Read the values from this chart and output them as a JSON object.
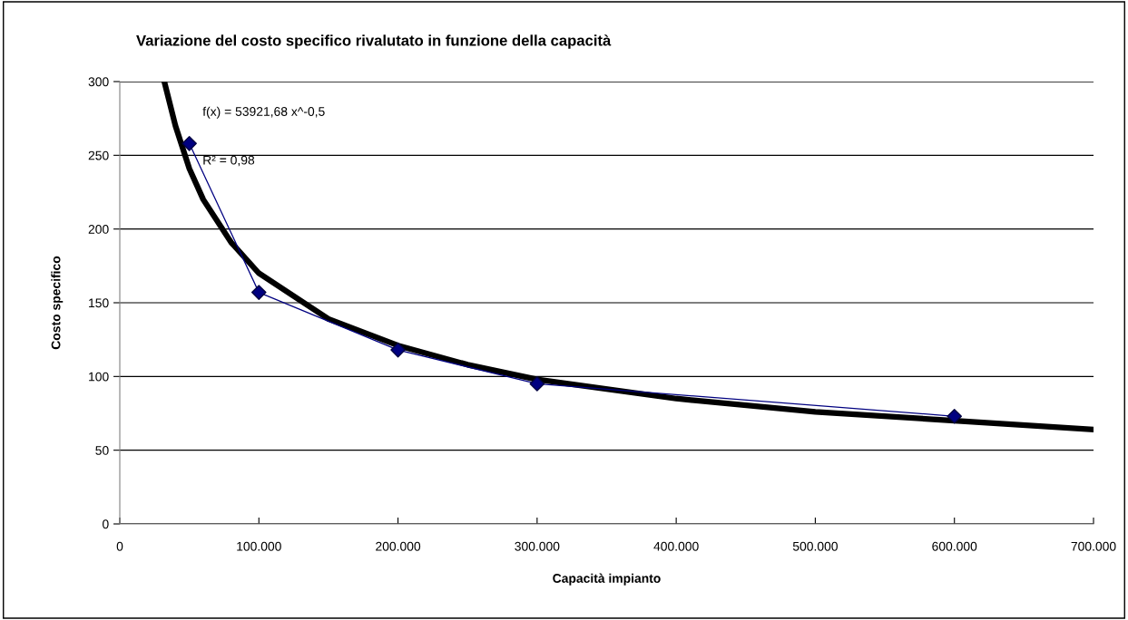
{
  "chart_data": {
    "type": "line",
    "title": "Variazione del costo specifico rivalutato in funzione della capacità",
    "xlabel": "Capacità impianto",
    "ylabel": "Costo specifico",
    "annotations": [
      "f(x) = 53921,68 x^-0,5",
      "R² = 0,98"
    ],
    "series": [
      {
        "color": "#000080",
        "marker": "diamond",
        "x": [
          50000,
          100000,
          200000,
          300000,
          600000
        ],
        "values": [
          258,
          157,
          118,
          95,
          73
        ]
      },
      {
        "color": "#000000",
        "marker": "none",
        "x": [
          32000,
          40000,
          50000,
          60000,
          80000,
          100000,
          150000,
          200000,
          250000,
          300000,
          400000,
          500000,
          600000,
          700000
        ],
        "values": [
          300,
          270,
          241,
          220,
          191,
          170,
          139,
          121,
          108,
          98,
          85,
          76,
          70,
          64
        ]
      }
    ],
    "xlim": [
      0,
      700000
    ],
    "ylim": [
      0,
      300
    ],
    "xticks": [
      0,
      {
        "value": 100000,
        "label": "100.000"
      },
      {
        "value": 200000,
        "label": "200.000"
      },
      {
        "value": 300000,
        "label": "300.000"
      },
      {
        "value": 400000,
        "label": "400.000"
      },
      {
        "value": 500000,
        "label": "500.000"
      },
      {
        "value": 600000,
        "label": "600.000"
      },
      {
        "value": 700000,
        "label": "700.000"
      }
    ],
    "yticks": [
      0,
      50,
      100,
      150,
      200,
      250,
      300
    ],
    "grid": "y"
  }
}
